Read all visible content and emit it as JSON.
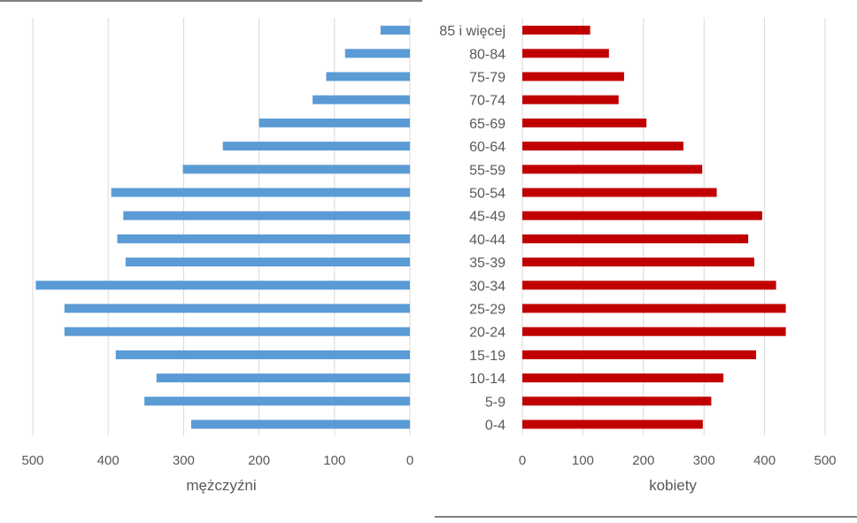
{
  "chart_data": [
    {
      "type": "bar",
      "orientation": "horizontal",
      "direction": "right-to-left",
      "xlabel": "mężczyźni",
      "xlim": [
        0,
        500
      ],
      "ticks": [
        "500",
        "400",
        "300",
        "200",
        "100",
        "0"
      ],
      "grid": true,
      "color": "#5b9bd5",
      "categories": [
        "0-4",
        "5-9",
        "10-14",
        "15-19",
        "20-24",
        "25-29",
        "30-34",
        "35-39",
        "40-44",
        "45-49",
        "50-54",
        "55-59",
        "60-64",
        "65-69",
        "70-74",
        "75-79",
        "80-84",
        "85 i więcej"
      ],
      "values": [
        290,
        352,
        336,
        390,
        458,
        458,
        496,
        377,
        388,
        380,
        396,
        301,
        248,
        200,
        129,
        111,
        86,
        39
      ]
    },
    {
      "type": "bar",
      "orientation": "horizontal",
      "direction": "left-to-right",
      "xlabel": "kobiety",
      "xlim": [
        0,
        500
      ],
      "ticks": [
        "0",
        "100",
        "200",
        "300",
        "400",
        "500"
      ],
      "grid": true,
      "color": "#c00000",
      "categories": [
        "0-4",
        "5-9",
        "10-14",
        "15-19",
        "20-24",
        "25-29",
        "30-34",
        "35-39",
        "40-44",
        "45-49",
        "50-54",
        "55-59",
        "60-64",
        "65-69",
        "70-74",
        "75-79",
        "80-84",
        "85 i więcej"
      ],
      "values": [
        298,
        312,
        332,
        386,
        435,
        435,
        419,
        383,
        373,
        396,
        321,
        297,
        266,
        205,
        159,
        168,
        143,
        112
      ]
    }
  ]
}
